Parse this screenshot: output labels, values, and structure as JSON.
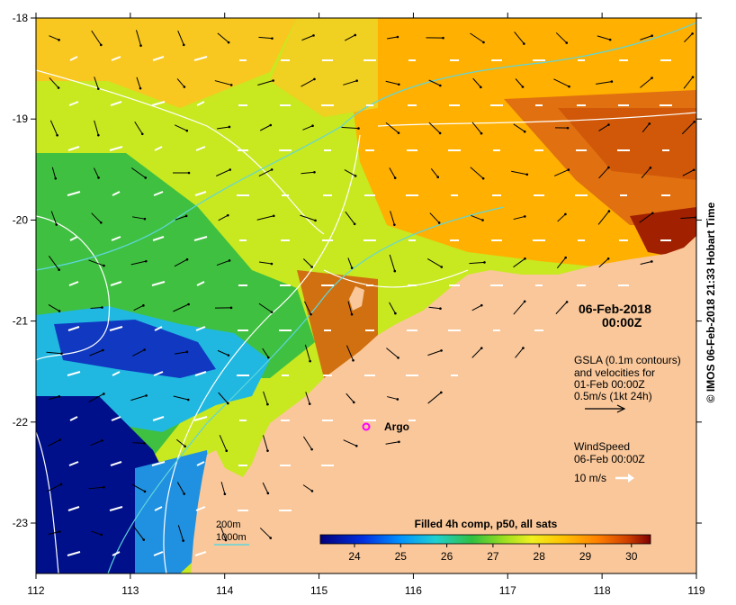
{
  "axes": {
    "x_ticks": [
      "112",
      "113",
      "114",
      "115",
      "116",
      "117",
      "118",
      "119"
    ],
    "y_ticks": [
      "-18",
      "-19",
      "-20",
      "-21",
      "-22",
      "-23"
    ]
  },
  "map": {
    "date_line1": "06-Feb-2018",
    "date_line2": "00:00Z",
    "gsla_lines": [
      "GSLA (0.1m contours)",
      "and velocities for",
      "01-Feb 00:00Z",
      "0.5m/s (1kt 24h)"
    ],
    "wind_lines": [
      "WindSpeed",
      "06-Feb 00:00Z"
    ],
    "wind_scale": "10 m/s",
    "argo_label": "Argo",
    "isobath_200": "200m",
    "isobath_1000": "1000m",
    "colorbar_title": "Filled 4h comp, p50, all sats",
    "colorbar_ticks": [
      "24",
      "25",
      "26",
      "27",
      "28",
      "29",
      "30"
    ],
    "credit": "© IMOS 06-Feb-2018 21:33 Hobart Time",
    "colors": {
      "land": "#f9c79a",
      "contour_200": "#5fd6dc",
      "contour_gsla": "#ffffff"
    }
  },
  "chart_data": {
    "type": "heatmap",
    "x_range": [
      112,
      119
    ],
    "y_range": [
      -23.5,
      -18
    ],
    "colorbar_range": [
      23.2,
      30.4
    ],
    "colormap": [
      "#00007a",
      "#0000d0",
      "#0080ff",
      "#20c8e0",
      "#40d8a0",
      "#20b030",
      "#80d020",
      "#e8f020",
      "#ffc000",
      "#ff8000",
      "#d04000",
      "#800000"
    ],
    "x_label": "",
    "y_label": ""
  }
}
